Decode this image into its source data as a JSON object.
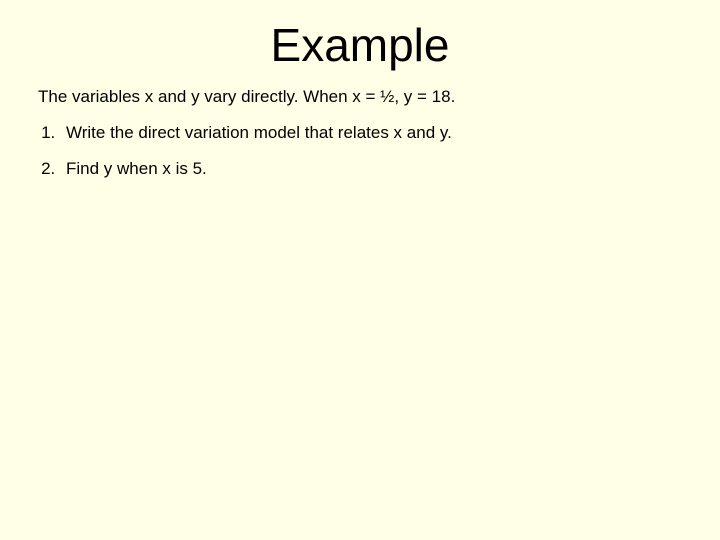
{
  "background_color": "#ffffe7",
  "text_color": "#000000",
  "font_family": "Comic Sans MS",
  "title": {
    "text": "Example",
    "fontsize": 46,
    "align": "center"
  },
  "intro": {
    "text": "The variables x and y vary directly. When x = ½, y = 18.",
    "fontsize": 17
  },
  "items": [
    {
      "text": "Write the direct variation model that relates x and y."
    },
    {
      "text": "Find y when x is 5."
    }
  ],
  "list_fontsize": 17
}
